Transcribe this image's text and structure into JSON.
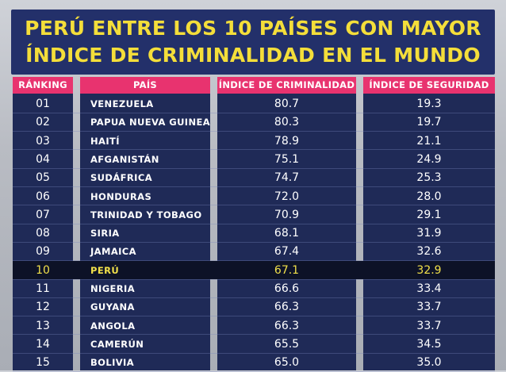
{
  "title": {
    "line1": "PERÚ ENTRE LOS 10 PAÍSES CON MAYOR",
    "line2": "ÍNDICE DE CRIMINALIDAD EN EL MUNDO"
  },
  "colors": {
    "title_bg": "#23306a",
    "title_text": "#f4de3a",
    "header_bg": "#e8336f",
    "table_bg": "#1f2a57",
    "highlight_bg": "#0d1227",
    "highlight_text": "#f1e04a"
  },
  "highlight_index": 9,
  "chart_data": {
    "type": "table",
    "title": "PERÚ ENTRE LOS 10 PAÍSES CON MAYOR ÍNDICE DE CRIMINALIDAD EN EL MUNDO",
    "columns": [
      "RÁNKING",
      "PAÍS",
      "ÍNDICE DE CRIMINALIDAD",
      "ÍNDICE DE SEGURIDAD"
    ],
    "rows": [
      [
        "01",
        "VENEZUELA",
        "80.7",
        "19.3"
      ],
      [
        "02",
        "PAPUA NUEVA GUINEA",
        "80.3",
        "19.7"
      ],
      [
        "03",
        "HAITÍ",
        "78.9",
        "21.1"
      ],
      [
        "04",
        "AFGANISTÁN",
        "75.1",
        "24.9"
      ],
      [
        "05",
        "SUDÁFRICA",
        "74.7",
        "25.3"
      ],
      [
        "06",
        "HONDURAS",
        "72.0",
        "28.0"
      ],
      [
        "07",
        "TRINIDAD Y TOBAGO",
        "70.9",
        "29.1"
      ],
      [
        "08",
        "SIRIA",
        "68.1",
        "31.9"
      ],
      [
        "09",
        "JAMAICA",
        "67.4",
        "32.6"
      ],
      [
        "10",
        "PERÚ",
        "67.1",
        "32.9"
      ],
      [
        "11",
        "NIGERIA",
        "66.6",
        "33.4"
      ],
      [
        "12",
        "GUYANA",
        "66.3",
        "33.7"
      ],
      [
        "13",
        "ANGOLA",
        "66.3",
        "33.7"
      ],
      [
        "14",
        "CAMERÚN",
        "65.5",
        "34.5"
      ],
      [
        "15",
        "BOLIVIA",
        "65.0",
        "35.0"
      ]
    ]
  }
}
